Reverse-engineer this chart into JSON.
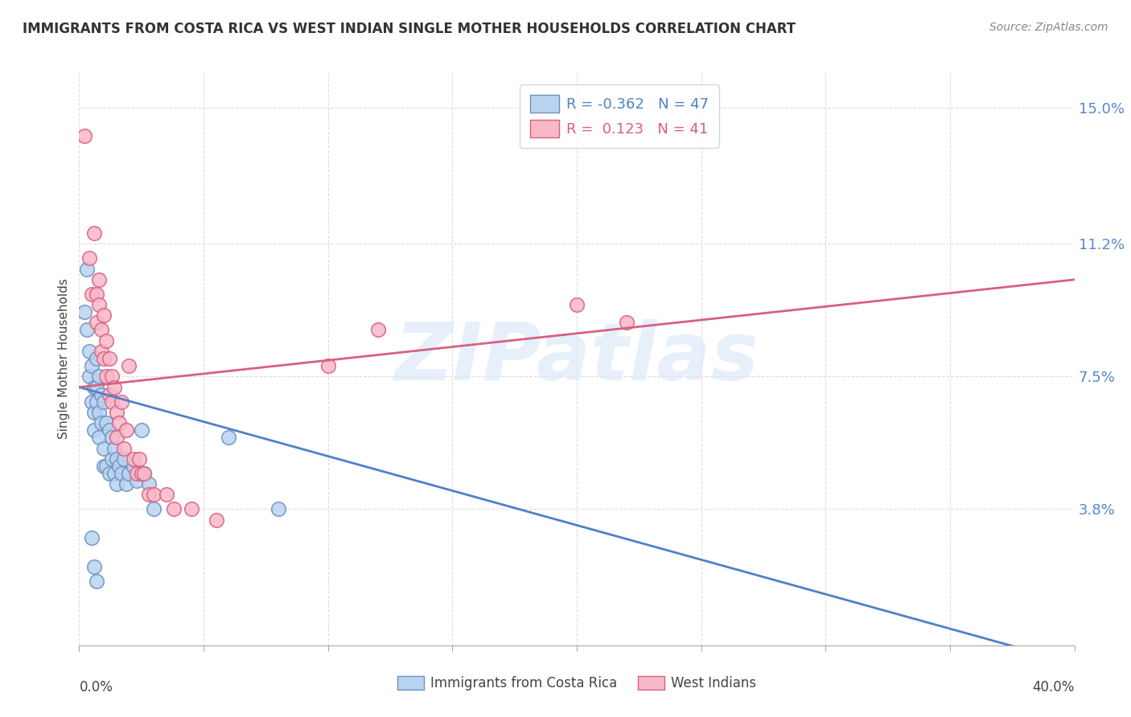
{
  "title": "IMMIGRANTS FROM COSTA RICA VS WEST INDIAN SINGLE MOTHER HOUSEHOLDS CORRELATION CHART",
  "source": "Source: ZipAtlas.com",
  "ylabel": "Single Mother Households",
  "yticks": [
    0.0,
    0.038,
    0.075,
    0.112,
    0.15
  ],
  "ytick_labels": [
    "",
    "3.8%",
    "7.5%",
    "11.2%",
    "15.0%"
  ],
  "xlim": [
    0.0,
    0.4
  ],
  "ylim": [
    0.0,
    0.16
  ],
  "blue_color": "#b8d4f0",
  "pink_color": "#f8b8c8",
  "blue_edge_color": "#7090c0",
  "pink_edge_color": "#d86080",
  "blue_line_color": "#5080c8",
  "pink_line_color": "#d86080",
  "watermark": "ZIPatlas",
  "watermark_blue": "#dce8f8",
  "watermark_pink": "#f0c8d8",
  "blue_line_x": [
    0.0,
    0.4
  ],
  "blue_line_y": [
    0.072,
    -0.005
  ],
  "pink_line_x": [
    0.0,
    0.4
  ],
  "pink_line_y": [
    0.072,
    0.102
  ],
  "blue_R": -0.362,
  "pink_R": 0.123,
  "blue_N": 47,
  "pink_N": 41,
  "blue_scatter": [
    [
      0.002,
      0.093
    ],
    [
      0.003,
      0.088
    ],
    [
      0.003,
      0.105
    ],
    [
      0.004,
      0.082
    ],
    [
      0.004,
      0.075
    ],
    [
      0.005,
      0.078
    ],
    [
      0.005,
      0.068
    ],
    [
      0.006,
      0.072
    ],
    [
      0.006,
      0.065
    ],
    [
      0.006,
      0.06
    ],
    [
      0.007,
      0.08
    ],
    [
      0.007,
      0.072
    ],
    [
      0.007,
      0.068
    ],
    [
      0.008,
      0.075
    ],
    [
      0.008,
      0.065
    ],
    [
      0.008,
      0.058
    ],
    [
      0.009,
      0.07
    ],
    [
      0.009,
      0.062
    ],
    [
      0.01,
      0.068
    ],
    [
      0.01,
      0.055
    ],
    [
      0.01,
      0.05
    ],
    [
      0.011,
      0.062
    ],
    [
      0.011,
      0.05
    ],
    [
      0.012,
      0.06
    ],
    [
      0.012,
      0.048
    ],
    [
      0.013,
      0.058
    ],
    [
      0.013,
      0.052
    ],
    [
      0.014,
      0.055
    ],
    [
      0.014,
      0.048
    ],
    [
      0.015,
      0.052
    ],
    [
      0.015,
      0.045
    ],
    [
      0.016,
      0.05
    ],
    [
      0.017,
      0.048
    ],
    [
      0.018,
      0.052
    ],
    [
      0.019,
      0.045
    ],
    [
      0.02,
      0.048
    ],
    [
      0.022,
      0.05
    ],
    [
      0.023,
      0.046
    ],
    [
      0.025,
      0.06
    ],
    [
      0.026,
      0.048
    ],
    [
      0.028,
      0.045
    ],
    [
      0.03,
      0.038
    ],
    [
      0.06,
      0.058
    ],
    [
      0.08,
      0.038
    ],
    [
      0.005,
      0.03
    ],
    [
      0.006,
      0.022
    ],
    [
      0.007,
      0.018
    ]
  ],
  "pink_scatter": [
    [
      0.002,
      0.142
    ],
    [
      0.004,
      0.108
    ],
    [
      0.005,
      0.098
    ],
    [
      0.006,
      0.115
    ],
    [
      0.007,
      0.098
    ],
    [
      0.007,
      0.09
    ],
    [
      0.008,
      0.102
    ],
    [
      0.008,
      0.095
    ],
    [
      0.009,
      0.088
    ],
    [
      0.009,
      0.082
    ],
    [
      0.01,
      0.092
    ],
    [
      0.01,
      0.08
    ],
    [
      0.011,
      0.085
    ],
    [
      0.011,
      0.075
    ],
    [
      0.012,
      0.08
    ],
    [
      0.012,
      0.07
    ],
    [
      0.013,
      0.075
    ],
    [
      0.013,
      0.068
    ],
    [
      0.014,
      0.072
    ],
    [
      0.015,
      0.065
    ],
    [
      0.015,
      0.058
    ],
    [
      0.016,
      0.062
    ],
    [
      0.017,
      0.068
    ],
    [
      0.018,
      0.055
    ],
    [
      0.019,
      0.06
    ],
    [
      0.02,
      0.078
    ],
    [
      0.022,
      0.052
    ],
    [
      0.023,
      0.048
    ],
    [
      0.024,
      0.052
    ],
    [
      0.025,
      0.048
    ],
    [
      0.026,
      0.048
    ],
    [
      0.028,
      0.042
    ],
    [
      0.03,
      0.042
    ],
    [
      0.035,
      0.042
    ],
    [
      0.038,
      0.038
    ],
    [
      0.1,
      0.078
    ],
    [
      0.12,
      0.088
    ],
    [
      0.2,
      0.095
    ],
    [
      0.22,
      0.09
    ],
    [
      0.045,
      0.038
    ],
    [
      0.055,
      0.035
    ]
  ]
}
